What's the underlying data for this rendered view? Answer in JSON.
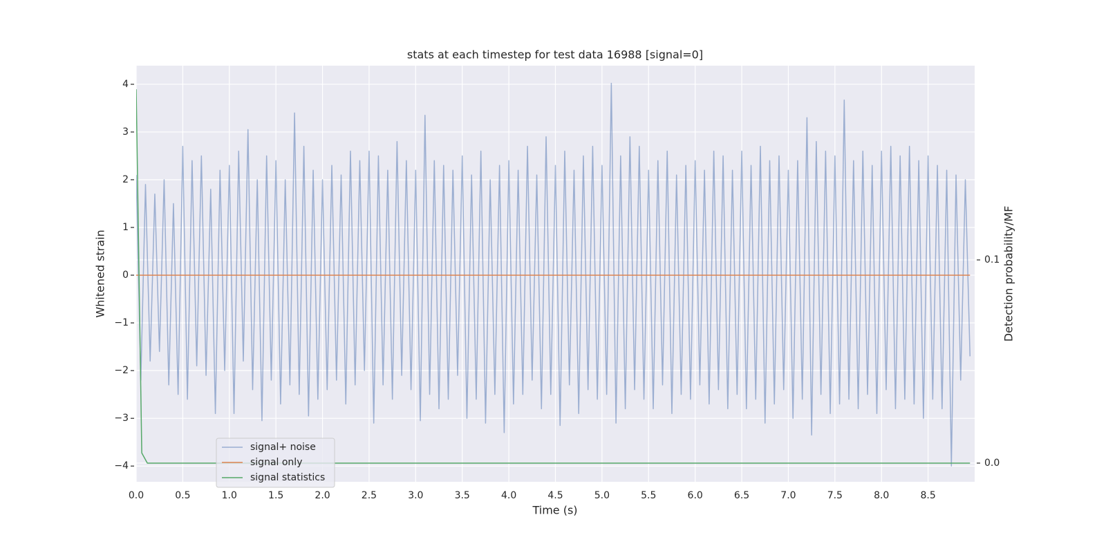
{
  "chart_data": {
    "type": "line",
    "title": "stats at each timestep for test data 16988 [signal=0]",
    "xlabel": "Time (s)",
    "ylabel": "Whitened strain",
    "y2label": "Detection probability/MF",
    "xlim": [
      0,
      9.0
    ],
    "ylim": [
      -4.33,
      4.39
    ],
    "y2lim": [
      -0.0092,
      0.1956
    ],
    "xticks": [
      {
        "value": 0,
        "label": "0.0"
      },
      0.5,
      {
        "value": 1,
        "label": "1.0"
      },
      1.5,
      {
        "value": 2,
        "label": "2.0"
      },
      2.5,
      {
        "value": 3,
        "label": "3.0"
      },
      3.5,
      {
        "value": 4,
        "label": "4.0"
      },
      4.5,
      {
        "value": 5,
        "label": "5.0"
      },
      5.5,
      {
        "value": 6,
        "label": "6.0"
      },
      6.5,
      {
        "value": 7,
        "label": "7.0"
      },
      7.5,
      {
        "value": 8,
        "label": "8.0"
      },
      8.5
    ],
    "yticks": [
      {
        "value": -4,
        "label": "−4"
      },
      {
        "value": -3,
        "label": "−3"
      },
      {
        "value": -2,
        "label": "−2"
      },
      {
        "value": -1,
        "label": "−1"
      },
      0,
      1,
      2,
      3,
      4
    ],
    "y2ticks": [
      {
        "value": 0,
        "label": "0.0"
      },
      0.1
    ],
    "grid": true,
    "legend": "lower left",
    "series": [
      {
        "name": "signal+ noise",
        "color": "#4c72b0",
        "x": [
          0,
          0.05,
          0.1,
          0.15,
          0.2,
          0.25,
          0.3,
          0.35,
          0.4,
          0.45,
          0.5,
          0.55,
          0.6,
          0.65,
          0.7,
          0.75,
          0.8,
          0.85,
          0.9,
          0.95,
          1,
          1.05,
          1.1,
          1.15,
          1.2,
          1.25,
          1.3,
          1.35,
          1.4,
          1.45,
          1.5,
          1.55,
          1.6,
          1.65,
          1.7,
          1.75,
          1.8,
          1.85,
          1.9,
          1.95,
          2,
          2.05,
          2.1,
          2.15,
          2.2,
          2.25,
          2.3,
          2.35,
          2.4,
          2.45,
          2.5,
          2.55,
          2.6,
          2.65,
          2.7,
          2.75,
          2.8,
          2.85,
          2.9,
          2.95,
          3,
          3.05,
          3.1,
          3.15,
          3.2,
          3.25,
          3.3,
          3.35,
          3.4,
          3.45,
          3.5,
          3.55,
          3.6,
          3.65,
          3.7,
          3.75,
          3.8,
          3.85,
          3.9,
          3.95,
          4,
          4.05,
          4.1,
          4.15,
          4.2,
          4.25,
          4.3,
          4.35,
          4.4,
          4.45,
          4.5,
          4.55,
          4.6,
          4.65,
          4.7,
          4.75,
          4.8,
          4.85,
          4.9,
          4.95,
          5,
          5.05,
          5.1,
          5.15,
          5.2,
          5.25,
          5.3,
          5.35,
          5.4,
          5.45,
          5.5,
          5.55,
          5.6,
          5.65,
          5.7,
          5.75,
          5.8,
          5.85,
          5.9,
          5.95,
          6,
          6.05,
          6.1,
          6.15,
          6.2,
          6.25,
          6.3,
          6.35,
          6.4,
          6.45,
          6.5,
          6.55,
          6.6,
          6.65,
          6.7,
          6.75,
          6.8,
          6.85,
          6.9,
          6.95,
          7,
          7.05,
          7.1,
          7.15,
          7.2,
          7.25,
          7.3,
          7.35,
          7.4,
          7.45,
          7.5,
          7.55,
          7.6,
          7.65,
          7.7,
          7.75,
          7.8,
          7.85,
          7.9,
          7.95,
          8,
          8.05,
          8.1,
          8.15,
          8.2,
          8.25,
          8.3,
          8.35,
          8.4,
          8.45,
          8.5,
          8.55,
          8.6,
          8.65,
          8.7,
          8.75,
          8.8,
          8.85,
          8.9,
          8.95
        ],
        "values": [
          2.1,
          -2.2,
          1.9,
          -1.8,
          1.7,
          -1.6,
          2.0,
          -2.3,
          1.5,
          -2.5,
          2.7,
          -2.6,
          2.4,
          -1.9,
          2.5,
          -2.1,
          1.8,
          -2.9,
          2.2,
          -2.0,
          2.3,
          -2.9,
          2.6,
          -1.8,
          3.05,
          -2.4,
          2.0,
          -3.05,
          2.5,
          -2.2,
          2.4,
          -2.7,
          2.0,
          -2.3,
          3.4,
          -2.5,
          2.7,
          -2.95,
          2.2,
          -2.6,
          2.0,
          -2.4,
          2.3,
          -2.2,
          2.1,
          -2.7,
          2.6,
          -2.3,
          2.4,
          -2.0,
          2.6,
          -3.1,
          2.5,
          -2.3,
          2.2,
          -2.6,
          2.8,
          -2.1,
          2.4,
          -2.4,
          2.2,
          -3.05,
          3.35,
          -2.5,
          2.4,
          -2.8,
          2.3,
          -2.6,
          2.2,
          -2.1,
          2.5,
          -3.0,
          2.1,
          -2.6,
          2.6,
          -3.1,
          2.0,
          -2.5,
          2.3,
          -3.3,
          2.4,
          -2.7,
          2.2,
          -2.5,
          2.7,
          -2.2,
          2.1,
          -2.8,
          2.9,
          -2.5,
          2.3,
          -3.15,
          2.6,
          -2.3,
          2.2,
          -2.9,
          2.5,
          -2.4,
          2.7,
          -2.6,
          2.3,
          -2.5,
          4.02,
          -3.1,
          2.5,
          -2.8,
          2.9,
          -2.4,
          2.7,
          -2.6,
          2.2,
          -2.8,
          2.4,
          -2.3,
          2.6,
          -2.9,
          2.1,
          -2.5,
          2.3,
          -2.6,
          2.4,
          -2.3,
          2.2,
          -2.7,
          2.6,
          -2.4,
          2.5,
          -2.8,
          2.2,
          -2.5,
          2.6,
          -2.8,
          2.3,
          -2.6,
          2.7,
          -3.1,
          2.4,
          -2.7,
          2.5,
          -2.4,
          2.2,
          -3.0,
          2.4,
          -2.6,
          3.3,
          -3.35,
          2.8,
          -2.5,
          2.6,
          -2.9,
          2.5,
          -2.7,
          3.67,
          -2.6,
          2.4,
          -2.8,
          2.6,
          -2.5,
          2.3,
          -2.9,
          2.6,
          -2.4,
          2.7,
          -2.8,
          2.5,
          -2.6,
          2.7,
          -2.7,
          2.4,
          -3.0,
          2.5,
          -2.6,
          2.3,
          -2.8,
          2.2,
          -4.0,
          2.1,
          -2.2,
          2.0,
          -1.7
        ]
      },
      {
        "name": "signal only",
        "color": "#dd8452",
        "x": [
          0,
          8.95
        ],
        "values": [
          0,
          0
        ]
      },
      {
        "name": "signal statistics",
        "color": "#55a868",
        "axis": "y2",
        "x": [
          0,
          0.06,
          0.12,
          8.95
        ],
        "values": [
          0.184,
          0.005,
          0,
          0
        ]
      }
    ]
  }
}
